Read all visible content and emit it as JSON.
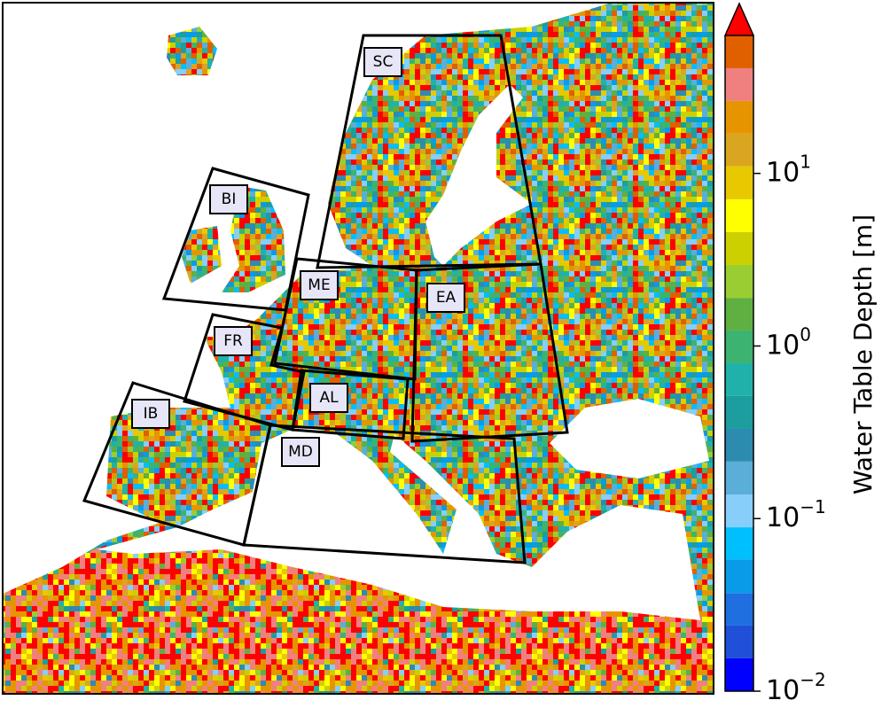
{
  "map": {
    "regions": [
      {
        "label": "SC"
      },
      {
        "label": "BI"
      },
      {
        "label": "ME"
      },
      {
        "label": "EA"
      },
      {
        "label": "FR"
      },
      {
        "label": "AL"
      },
      {
        "label": "IB"
      },
      {
        "label": "MD"
      }
    ],
    "colorbar": {
      "label": "Water Table Depth [m]",
      "scale": "log",
      "extend": "max",
      "ylim": [
        0.01,
        63
      ],
      "yticks": [
        {
          "value": 0.01,
          "label": "10",
          "exponent": "−2"
        },
        {
          "value": 0.1,
          "label": "10",
          "exponent": "−1"
        },
        {
          "value": 1,
          "label": "10",
          "exponent": "0"
        },
        {
          "value": 10,
          "label": "10",
          "exponent": "1"
        }
      ],
      "bounds": [
        0.01,
        0.0155,
        0.024,
        0.037,
        0.058,
        0.089,
        0.138,
        0.214,
        0.331,
        0.513,
        0.794,
        1.23,
        1.9,
        2.95,
        4.57,
        7.08,
        11,
        17,
        26.3,
        40.7,
        63
      ],
      "colors": [
        "#0000ff",
        "#2050d8",
        "#1f6fe0",
        "#0a9be8",
        "#00bfff",
        "#87cefa",
        "#5aaed8",
        "#2e8bb0",
        "#1c9e9e",
        "#20b2aa",
        "#3cb371",
        "#5fb040",
        "#9acd32",
        "#cdd000",
        "#ffff00",
        "#e8c800",
        "#daa520",
        "#e69500",
        "#f08080",
        "#e06000",
        "#ff0000"
      ]
    }
  }
}
